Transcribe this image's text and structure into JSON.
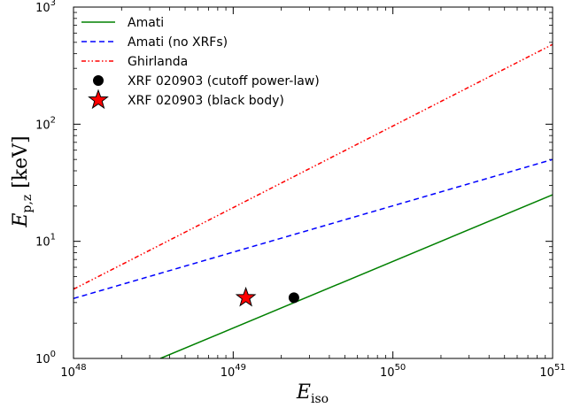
{
  "chart_data": {
    "type": "line",
    "xscale": "log",
    "yscale": "log",
    "xlim": [
      1e+48,
      1e+51
    ],
    "ylim": [
      1,
      1000
    ],
    "xlabel": {
      "main": "E",
      "sub": "iso"
    },
    "ylabel": {
      "main": "E",
      "sub": "p,z",
      "unit": " [keV]"
    },
    "x_ticks": [
      {
        "value": 1e+48,
        "base": "10",
        "exp": "48"
      },
      {
        "value": 1e+49,
        "base": "10",
        "exp": "49"
      },
      {
        "value": 1e+50,
        "base": "10",
        "exp": "50"
      },
      {
        "value": 1e+51,
        "base": "10",
        "exp": "51"
      }
    ],
    "y_ticks": [
      {
        "value": 1,
        "base": "10",
        "exp": "0"
      },
      {
        "value": 10,
        "base": "10",
        "exp": "1"
      },
      {
        "value": 100,
        "base": "10",
        "exp": "2"
      },
      {
        "value": 1000,
        "base": "10",
        "exp": "3"
      }
    ],
    "legend_position": "top-left",
    "series": [
      {
        "name": "Amati",
        "kind": "line",
        "color": "#008000",
        "dash": "solid",
        "x": [
          3.5e+48,
          1e+51
        ],
        "y": [
          1.0,
          25.0
        ]
      },
      {
        "name": "Amati (no XRFs)",
        "kind": "line",
        "color": "#0000ff",
        "dash": "dashed",
        "x": [
          1e+48,
          1e+51
        ],
        "y": [
          3.25,
          50.0
        ]
      },
      {
        "name": "Ghirlanda",
        "kind": "line",
        "color": "#ff0000",
        "dash": "dashdotdot",
        "x": [
          1e+48,
          1e+51
        ],
        "y": [
          3.9,
          480.0
        ]
      },
      {
        "name": "XRF 020903 (cutoff power-law)",
        "kind": "point",
        "marker": "circle",
        "color": "#000000",
        "x": [
          2.4e+49
        ],
        "y": [
          3.3
        ]
      },
      {
        "name": "XRF 020903 (black body)",
        "kind": "point",
        "marker": "star",
        "color": "#ff0000",
        "x": [
          1.2e+49
        ],
        "y": [
          3.3
        ]
      }
    ]
  }
}
